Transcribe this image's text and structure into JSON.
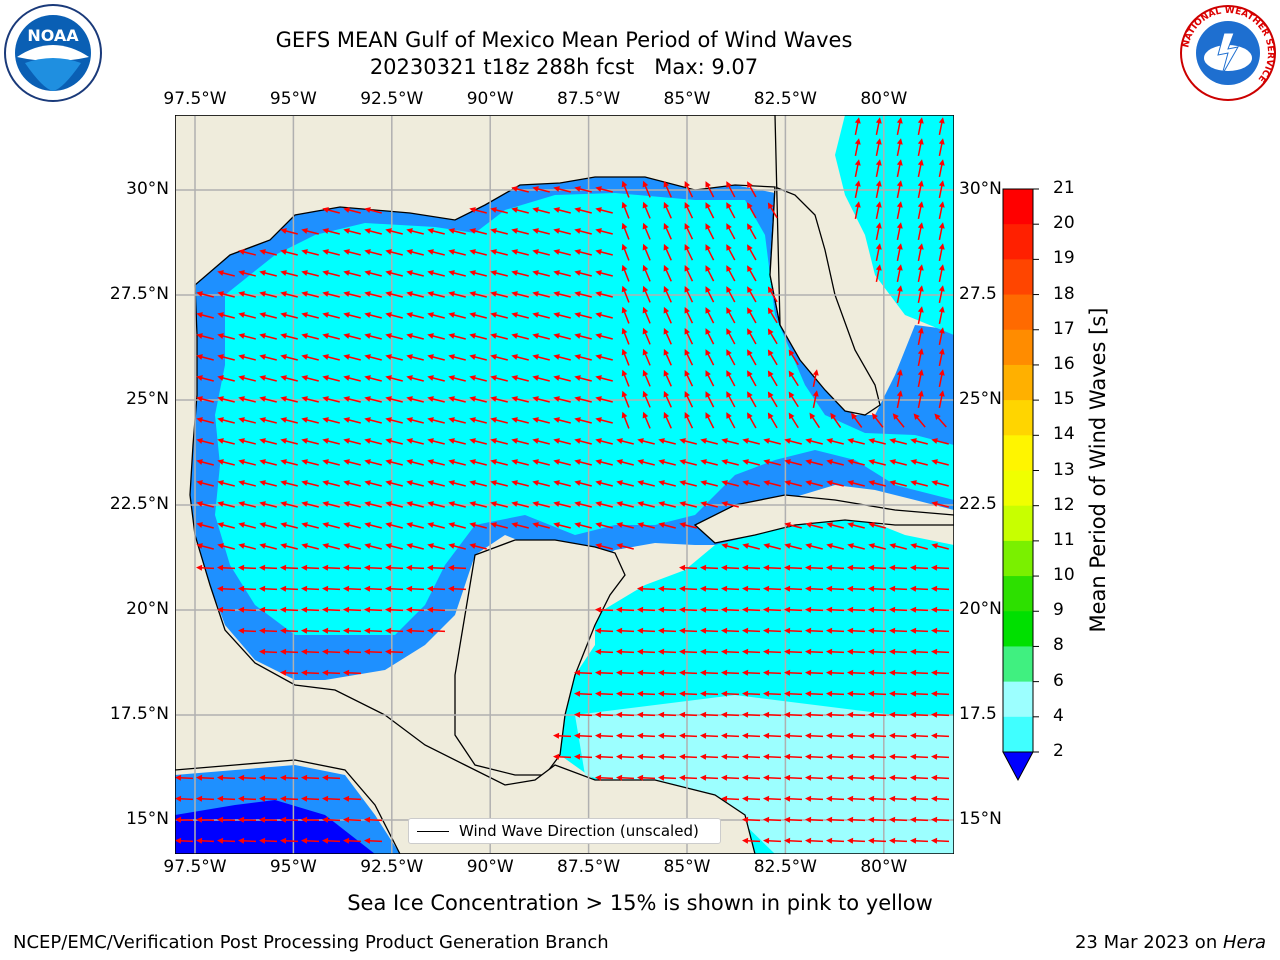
{
  "title_line1": "GEFS MEAN Gulf of Mexico Mean Period of Wind Waves",
  "title_line2": "20230321 t18z 288h fcst   Max: 9.07",
  "lon_ticks": [
    "97.5°W",
    "95°W",
    "92.5°W",
    "90°W",
    "87.5°W",
    "85°W",
    "82.5°W",
    "80°W"
  ],
  "lat_ticks": [
    "30°N",
    "27.5°N",
    "25°N",
    "22.5°N",
    "20°N",
    "17.5°N",
    "15°N"
  ],
  "lat_ticks_right": [
    "30°N",
    "27.5",
    "25°N",
    "22.5",
    "20°N",
    "17.5",
    "15°N"
  ],
  "legend_label": "Wind Wave Direction (unscaled)",
  "colorbar": {
    "label": "Mean Period of Wind Waves [s]",
    "ticks": [
      "21",
      "20",
      "19",
      "18",
      "17",
      "16",
      "15",
      "14",
      "13",
      "12",
      "11",
      "10",
      "9",
      "8",
      "6",
      "4",
      "2"
    ],
    "colors": [
      "#ff0000",
      "#ff2000",
      "#ff4500",
      "#ff6a00",
      "#ff8c00",
      "#ffb000",
      "#ffd500",
      "#fff500",
      "#f0ff00",
      "#c8ff00",
      "#7af000",
      "#2de000",
      "#00e000",
      "#40f080",
      "#9cffff",
      "#40ffff",
      "#00ffff",
      "#1e90ff",
      "#0000ff"
    ],
    "extend_color": "#0000ff"
  },
  "colors": {
    "land": "#efecdc",
    "sea_light": "#00ffff",
    "sea_mid": "#1e90ff",
    "sea_deep": "#0000ff",
    "sea_pale": "#9cffff",
    "arrow": "#ff0000",
    "grid": "#b0b0b0"
  },
  "caption": "Sea Ice Concentration > 15% is shown in pink to yellow",
  "footer_left": "NCEP/EMC/Verification Post Processing Product Generation Branch",
  "footer_right_date": "23 Mar 2023 on ",
  "footer_right_host": "Hera",
  "logo_noaa": "NOAA",
  "logo_nws": "NATIONAL WEATHER SERVICE"
}
